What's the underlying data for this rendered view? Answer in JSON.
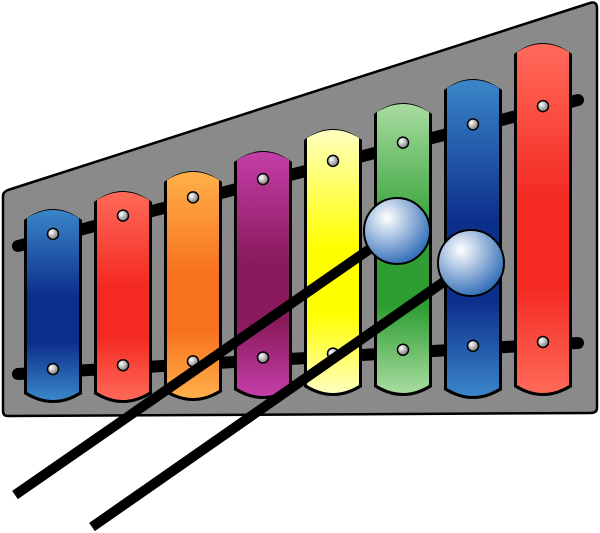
{
  "illustration": {
    "frame_color": "#8a8a8a",
    "rail_color": "#000000",
    "bars": [
      {
        "name": "bar-1-blue",
        "light": "#3a86c8",
        "dark": "#0d2f8c"
      },
      {
        "name": "bar-2-red",
        "light": "#ff6a5a",
        "dark": "#f42a22"
      },
      {
        "name": "bar-3-orange",
        "light": "#ffb04a",
        "dark": "#f7721e"
      },
      {
        "name": "bar-4-purple",
        "light": "#c43ea8",
        "dark": "#8a1a5c"
      },
      {
        "name": "bar-5-yellow",
        "light": "#ffffc0",
        "dark": "#ffff00"
      },
      {
        "name": "bar-6-green",
        "light": "#a8dca0",
        "dark": "#2e9e32"
      },
      {
        "name": "bar-7-blue",
        "light": "#3a86c8",
        "dark": "#0d2f8c"
      },
      {
        "name": "bar-8-red",
        "light": "#ff6a5a",
        "dark": "#f42a22"
      }
    ],
    "mallet_ball_colors": [
      "#ffffff",
      "#1e5fb0"
    ]
  }
}
